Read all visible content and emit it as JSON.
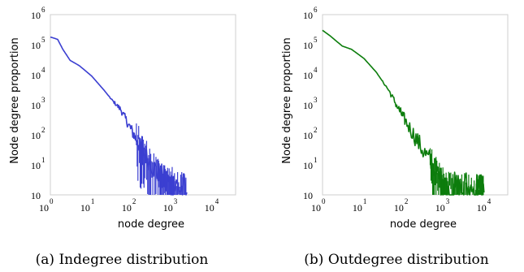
{
  "chart_data": [
    {
      "type": "line",
      "title": "",
      "caption": "(a) Indegree distribution",
      "xlabel": "node degree",
      "ylabel": "Node degree proportion",
      "x_scale": "log",
      "y_scale": "log",
      "xlim": [
        1,
        30000
      ],
      "ylim": [
        1,
        1000000
      ],
      "x_ticks": [
        {
          "base": "10",
          "exp": "0"
        },
        {
          "base": "10",
          "exp": "1"
        },
        {
          "base": "10",
          "exp": "2"
        },
        {
          "base": "10",
          "exp": "3"
        },
        {
          "base": "10",
          "exp": "4"
        }
      ],
      "y_ticks": [
        {
          "base": "10",
          "exp": ""
        },
        {
          "base": "10",
          "exp": "1"
        },
        {
          "base": "10",
          "exp": "2"
        },
        {
          "base": "10",
          "exp": "3"
        },
        {
          "base": "10",
          "exp": "4"
        },
        {
          "base": "10",
          "exp": "5"
        },
        {
          "base": "10",
          "exp": "6"
        }
      ],
      "color": "#3b3fd1",
      "series": [
        {
          "name": "",
          "x": [
            1,
            1.5,
            2,
            3,
            5,
            10,
            20,
            30,
            50,
            80,
            120,
            200,
            400,
            600,
            1000,
            2000
          ],
          "y": [
            180000,
            150000,
            70000,
            30000,
            20000,
            9000,
            3000,
            1500,
            700,
            200,
            70,
            20,
            5,
            3,
            2,
            1.2
          ]
        }
      ]
    },
    {
      "type": "line",
      "title": "",
      "caption": "(b) Outdegree distribution",
      "xlabel": "node degree",
      "ylabel": "Node degree proportion",
      "x_scale": "log",
      "y_scale": "log",
      "xlim": [
        1,
        30000
      ],
      "ylim": [
        1,
        1000000
      ],
      "x_ticks": [
        {
          "base": "10",
          "exp": "0"
        },
        {
          "base": "10",
          "exp": "1"
        },
        {
          "base": "10",
          "exp": "2"
        },
        {
          "base": "10",
          "exp": "3"
        },
        {
          "base": "10",
          "exp": "4"
        }
      ],
      "y_ticks": [
        {
          "base": "10",
          "exp": ""
        },
        {
          "base": "10",
          "exp": "1"
        },
        {
          "base": "10",
          "exp": "2"
        },
        {
          "base": "10",
          "exp": "3"
        },
        {
          "base": "10",
          "exp": "4"
        },
        {
          "base": "10",
          "exp": "5"
        },
        {
          "base": "10",
          "exp": "6"
        }
      ],
      "color": "#0c7d0c",
      "series": [
        {
          "name": "",
          "x": [
            1,
            1.5,
            3,
            5,
            10,
            20,
            40,
            70,
            100,
            200,
            400,
            700,
            1000,
            2000,
            5000,
            8000
          ],
          "y": [
            300000,
            200000,
            90000,
            70000,
            35000,
            12000,
            3000,
            700,
            300,
            60,
            12,
            3,
            1.5,
            1.4,
            1.3,
            1.2
          ]
        }
      ]
    }
  ]
}
